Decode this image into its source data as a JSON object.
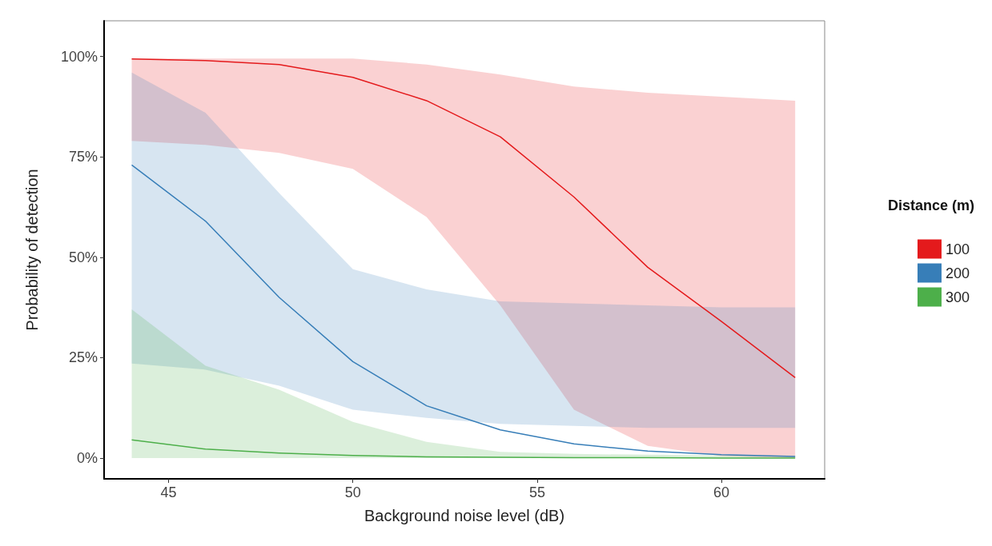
{
  "chart_data": {
    "type": "line",
    "xlabel": "Background noise level (dB)",
    "ylabel": "Probability of detection",
    "legend_title": "Distance (m)",
    "legend": "right",
    "grid": false,
    "marker": "none",
    "line_style": "solid",
    "x": [
      44,
      46,
      48,
      50,
      52,
      54,
      56,
      58,
      60,
      62
    ],
    "xlim": [
      43.25,
      62.8
    ],
    "xticks": [
      45,
      50,
      55,
      60
    ],
    "ylim": [
      -0.052,
      1.089
    ],
    "yticks": [
      {
        "value": 0,
        "label": "0%"
      },
      {
        "value": 0.25,
        "label": "25%"
      },
      {
        "value": 0.5,
        "label": "50%"
      },
      {
        "value": 0.75,
        "label": "75%"
      },
      {
        "value": 1,
        "label": "100%"
      }
    ],
    "series": [
      {
        "name": "100",
        "color": "#e41a1c",
        "values": [
          0.994,
          0.99,
          0.98,
          0.948,
          0.89,
          0.8,
          0.65,
          0.475,
          0.34,
          0.2
        ],
        "lower": [
          0.79,
          0.78,
          0.76,
          0.72,
          0.6,
          0.38,
          0.12,
          0.03,
          0.005,
          0
        ],
        "upper": [
          0.995,
          0.995,
          0.995,
          0.995,
          0.98,
          0.955,
          0.925,
          0.91,
          0.9,
          0.89
        ]
      },
      {
        "name": "200",
        "color": "#377eb8",
        "values": [
          0.73,
          0.59,
          0.4,
          0.24,
          0.13,
          0.07,
          0.035,
          0.017,
          0.008,
          0.004
        ],
        "lower": [
          0.235,
          0.22,
          0.18,
          0.12,
          0.1,
          0.085,
          0.08,
          0.075,
          0.075,
          0.075
        ],
        "upper": [
          0.96,
          0.86,
          0.66,
          0.47,
          0.42,
          0.39,
          0.385,
          0.38,
          0.375,
          0.375
        ]
      },
      {
        "name": "300",
        "color": "#4daf4a",
        "values": [
          0.045,
          0.022,
          0.012,
          0.006,
          0.003,
          0.002,
          0.001,
          0.001,
          0,
          0
        ],
        "lower": [
          0,
          0,
          0,
          0,
          0,
          0,
          0,
          0,
          0,
          0
        ],
        "upper": [
          0.37,
          0.23,
          0.17,
          0.09,
          0.04,
          0.015,
          0.01,
          0.008,
          0.006,
          0.005
        ]
      }
    ]
  }
}
